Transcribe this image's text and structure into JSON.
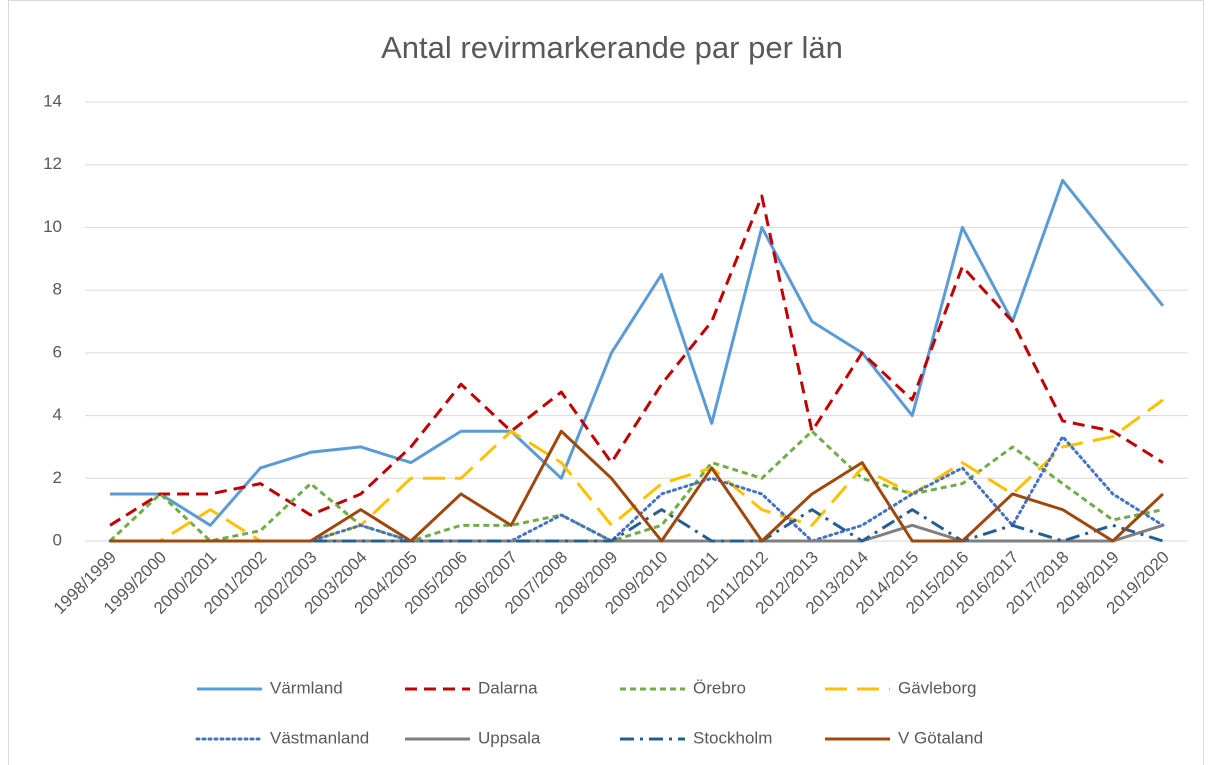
{
  "chart_data": {
    "type": "line",
    "title": "Antal revirmarkerande par per län",
    "categories": [
      "1998/1999",
      "1999/2000",
      "2000/2001",
      "2001/2002",
      "2002/2003",
      "2003/2004",
      "2004/2005",
      "2005/2006",
      "2006/2007",
      "2007/2008",
      "2008/2009",
      "2009/2010",
      "2010/2011",
      "2011/2012",
      "2012/2013",
      "2013/2014",
      "2014/2015",
      "2015/2016",
      "2016/2017",
      "2017/2018",
      "2018/2019",
      "2019/2020"
    ],
    "series": [
      {
        "name": "Värmland",
        "color": "#5b9bd5",
        "dash": "solid",
        "values": [
          1.5,
          1.5,
          0.5,
          2.33,
          2.83,
          3,
          2.5,
          3.5,
          3.5,
          2,
          6,
          8.5,
          3.75,
          10,
          7,
          6,
          4,
          10,
          7,
          11.5,
          9.5,
          7.5
        ]
      },
      {
        "name": "Dalarna",
        "color": "#c00000",
        "dash": "dash",
        "values": [
          0.5,
          1.5,
          1.5,
          1.83,
          0.83,
          1.5,
          3,
          5,
          3.5,
          4.75,
          2.5,
          5,
          7,
          11,
          3.5,
          6,
          4.5,
          8.75,
          7,
          3.83,
          3.5,
          2.5
        ]
      },
      {
        "name": "Örebro",
        "color": "#70ad47",
        "dash": "sysdash",
        "values": [
          0,
          1.5,
          0,
          0.33,
          1.83,
          0.5,
          0,
          0.5,
          0.5,
          0.83,
          0,
          0.5,
          2.5,
          2,
          3.5,
          2,
          1.5,
          1.83,
          3,
          1.83,
          0.67,
          1
        ]
      },
      {
        "name": "Gävleborg",
        "color": "#ffc000",
        "dash": "longdash",
        "values": [
          0,
          0,
          1,
          0,
          0,
          0.5,
          2,
          2,
          3.5,
          2.5,
          0.5,
          1.83,
          2.33,
          1,
          0.5,
          2.33,
          1.5,
          2.5,
          1.5,
          3,
          3.33,
          4.5
        ]
      },
      {
        "name": "Västmanland",
        "color": "#4472c4",
        "dash": "dot",
        "values": [
          0,
          0,
          0,
          0,
          0,
          0.5,
          0,
          0,
          0,
          0.83,
          0,
          1.5,
          2,
          1.5,
          0,
          0.5,
          1.5,
          2.33,
          0.5,
          3.33,
          1.5,
          0.5
        ]
      },
      {
        "name": "Uppsala",
        "color": "#7f7f7f",
        "dash": "solid",
        "values": [
          0,
          0,
          0,
          0,
          0,
          0,
          0,
          0,
          0,
          0,
          0,
          0,
          0,
          0,
          0,
          0,
          0.5,
          0,
          0,
          0,
          0,
          0.5
        ]
      },
      {
        "name": "Stockholm",
        "color": "#255e91",
        "dash": "dashdot",
        "values": [
          0,
          0,
          0,
          0,
          0,
          0,
          0,
          0,
          0,
          0,
          0,
          1,
          0,
          0,
          1,
          0,
          1,
          0,
          0.5,
          0,
          0.5,
          0
        ]
      },
      {
        "name": "V Götaland",
        "color": "#9e480e",
        "dash": "solid",
        "values": [
          0,
          0,
          0,
          0,
          0,
          1,
          0,
          1.5,
          0.5,
          3.5,
          2,
          0,
          2.33,
          0,
          1.5,
          2.5,
          0,
          0,
          1.5,
          1,
          0,
          1.5
        ]
      }
    ],
    "ylim": [
      0,
      14
    ],
    "yticks": [
      0,
      2,
      4,
      6,
      8,
      10,
      12,
      14
    ],
    "grid": true,
    "legend": "bottom"
  }
}
